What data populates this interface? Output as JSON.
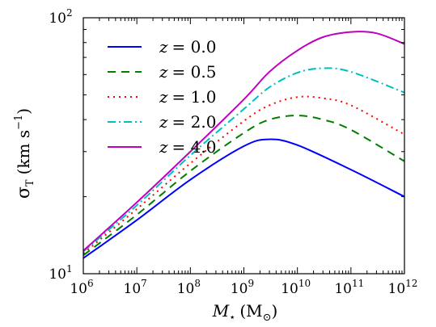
{
  "chart_data": {
    "type": "line",
    "xscale": "log",
    "yscale": "log",
    "xlim": [
      1000000,
      1000000000000
    ],
    "ylim": [
      10,
      100
    ],
    "xlabel": {
      "symbol": "M",
      "subscript": "⋆",
      "unit": "(M",
      "unit_sub": "⊙",
      "unit_close": ")"
    },
    "ylabel": {
      "symbol": "σ",
      "subscript": "T",
      "unit": "(km s",
      "unit_sup": "−1",
      "unit_close": ")"
    },
    "xticks": [
      {
        "value": 1000000,
        "base": "10",
        "exp": "6"
      },
      {
        "value": 10000000,
        "base": "10",
        "exp": "7"
      },
      {
        "value": 100000000,
        "base": "10",
        "exp": "8"
      },
      {
        "value": 1000000000,
        "base": "10",
        "exp": "9"
      },
      {
        "value": 10000000000,
        "base": "10",
        "exp": "10"
      },
      {
        "value": 100000000000,
        "base": "10",
        "exp": "11"
      },
      {
        "value": 1000000000000,
        "base": "10",
        "exp": "12"
      }
    ],
    "yticks": [
      {
        "value": 10,
        "base": "10",
        "exp": "1"
      },
      {
        "value": 100,
        "base": "10",
        "exp": "2"
      }
    ],
    "legend_position": "upper-left",
    "grid": false,
    "series": [
      {
        "name": "z = 0.0",
        "legend_lhs": "z",
        "legend_rhs": "= 0.0",
        "color": "#0000ff",
        "dash": "none",
        "x": [
          1000000.0,
          10000000.0,
          100000000.0,
          1000000000.0,
          3000000000.0,
          10000000000.0,
          100000000000.0,
          1000000000000.0
        ],
        "y": [
          11.5,
          16.2,
          23.3,
          31.5,
          33.5,
          31.8,
          25.5,
          20.0
        ]
      },
      {
        "name": "z = 0.5",
        "legend_lhs": "z",
        "legend_rhs": "= 0.5",
        "color": "#007f00",
        "dash": "10 7",
        "x": [
          1000000.0,
          10000000.0,
          100000000.0,
          1000000000.0,
          3000000000.0,
          10000000000.0,
          30000000000.0,
          100000000000.0,
          1000000000000.0
        ],
        "y": [
          11.8,
          17.0,
          25.2,
          35.5,
          40.0,
          41.5,
          40.0,
          36.5,
          27.5
        ]
      },
      {
        "name": "z = 1.0",
        "legend_lhs": "z",
        "legend_rhs": "= 1.0",
        "color": "#ff0000",
        "dash": "2 5",
        "x": [
          1000000.0,
          10000000.0,
          100000000.0,
          1000000000.0,
          3000000000.0,
          10000000000.0,
          30000000000.0,
          100000000000.0,
          1000000000000.0
        ],
        "y": [
          12.0,
          17.9,
          27.0,
          39.5,
          45.5,
          49.0,
          48.5,
          45.5,
          35.0
        ]
      },
      {
        "name": "z = 2.0",
        "legend_lhs": "z",
        "legend_rhs": "= 2.0",
        "color": "#00bfbf",
        "dash": "10 4 2 4",
        "x": [
          1000000.0,
          10000000.0,
          100000000.0,
          1000000000.0,
          3000000000.0,
          10000000000.0,
          30000000000.0,
          100000000000.0,
          1000000000000.0
        ],
        "y": [
          12.2,
          18.5,
          29.0,
          44.0,
          53.5,
          61.0,
          63.5,
          61.5,
          51.0
        ]
      },
      {
        "name": "z = 4.0",
        "legend_lhs": "z",
        "legend_rhs": "= 4.0",
        "color": "#bf00bf",
        "dash": "none",
        "x": [
          1000000.0,
          10000000.0,
          100000000.0,
          1000000000.0,
          3000000000.0,
          10000000000.0,
          30000000000.0,
          100000000000.0,
          300000000000.0,
          1000000000000.0
        ],
        "y": [
          12.3,
          19.0,
          30.0,
          48.0,
          61.5,
          74.5,
          84.0,
          88.0,
          87.0,
          79.0
        ]
      }
    ]
  }
}
